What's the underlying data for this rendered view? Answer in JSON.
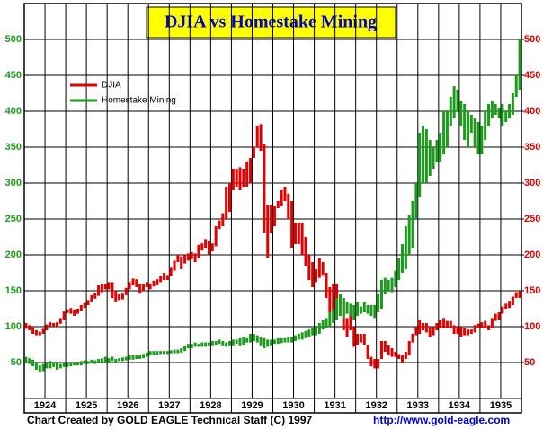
{
  "chart_data": {
    "type": "range_bar",
    "title": "DJIA  vs  Homestake Mining",
    "credit": "Chart Created by GOLD EAGLE Technical Staff (C) 1997",
    "url": "http://www.gold-eagle.com",
    "categories": [
      "1924",
      "1925",
      "1926",
      "1927",
      "1928",
      "1929",
      "1930",
      "1931",
      "1932",
      "1933",
      "1934",
      "1935"
    ],
    "ylim": [
      0,
      550
    ],
    "yticks": [
      50,
      100,
      150,
      200,
      250,
      300,
      350,
      400,
      450,
      500
    ],
    "y2lim": [
      0,
      550
    ],
    "y2ticks": [
      50,
      100,
      150,
      200,
      250,
      300,
      350,
      400,
      450,
      500
    ],
    "grid": true,
    "legend": "upper left",
    "series": [
      {
        "name": "DJIA",
        "color": "#e00000",
        "axis": "y2",
        "low": [
          97,
          95,
          90,
          88,
          88,
          90,
          95,
          100,
          100,
          100,
          104,
          110,
          119,
          118,
          115,
          118,
          122,
          126,
          130,
          135,
          139,
          143,
          148,
          152,
          152,
          140,
          135,
          137,
          138,
          144,
          152,
          158,
          155,
          146,
          150,
          155,
          152,
          156,
          158,
          162,
          165,
          165,
          170,
          178,
          190,
          180,
          188,
          192,
          194,
          190,
          196,
          206,
          210,
          200,
          205,
          212,
          236,
          240,
          250,
          260,
          290,
          295,
          290,
          295,
          295,
          300,
          335,
          350,
          345,
          230,
          195,
          230,
          240,
          265,
          268,
          275,
          250,
          210,
          215,
          215,
          200,
          185,
          165,
          155,
          162,
          168,
          172,
          140,
          120,
          120,
          140,
          130,
          95,
          85,
          95,
          72,
          75,
          78,
          75,
          55,
          45,
          42,
          42,
          55,
          65,
          60,
          58,
          58,
          55,
          50,
          55,
          60,
          78,
          88,
          90,
          95,
          92,
          85,
          88,
          95,
          98,
          98,
          98,
          98,
          90,
          90,
          85,
          88,
          88,
          90,
          92,
          98,
          98,
          98,
          95,
          98,
          108,
          110,
          118,
          125,
          126,
          130,
          140,
          140
        ],
        "high": [
          105,
          102,
          99,
          95,
          93,
          97,
          103,
          106,
          105,
          106,
          112,
          121,
          124,
          126,
          124,
          125,
          130,
          133,
          137,
          144,
          147,
          158,
          160,
          160,
          162,
          162,
          150,
          145,
          146,
          154,
          162,
          167,
          166,
          160,
          160,
          162,
          160,
          164,
          166,
          170,
          175,
          172,
          182,
          192,
          200,
          198,
          200,
          202,
          204,
          202,
          214,
          216,
          222,
          220,
          216,
          240,
          248,
          258,
          295,
          300,
          320,
          320,
          322,
          320,
          330,
          335,
          350,
          380,
          382,
          355,
          270,
          270,
          268,
          275,
          290,
          295,
          285,
          275,
          245,
          245,
          245,
          225,
          200,
          190,
          180,
          195,
          190,
          175,
          155,
          160,
          160,
          145,
          140,
          112,
          120,
          100,
          90,
          90,
          90,
          75,
          58,
          55,
          55,
          80,
          80,
          75,
          70,
          65,
          62,
          60,
          65,
          80,
          90,
          100,
          110,
          105,
          105,
          100,
          100,
          105,
          110,
          112,
          108,
          108,
          102,
          100,
          100,
          98,
          96,
          96,
          102,
          104,
          106,
          108,
          102,
          112,
          118,
          120,
          128,
          132,
          136,
          142,
          148,
          150
        ]
      },
      {
        "name": "Homestake Mining",
        "color": "#1e9a1e",
        "axis": "y",
        "low": [
          50,
          48,
          45,
          40,
          36,
          38,
          42,
          42,
          44,
          40,
          42,
          44,
          44,
          45,
          46,
          46,
          46,
          48,
          48,
          49,
          48,
          50,
          50,
          50,
          50,
          52,
          50,
          52,
          52,
          53,
          54,
          54,
          55,
          55,
          56,
          58,
          60,
          60,
          61,
          62,
          62,
          62,
          63,
          63,
          63,
          64,
          66,
          70,
          70,
          72,
          72,
          72,
          72,
          74,
          74,
          75,
          76,
          74,
          72,
          74,
          74,
          76,
          74,
          75,
          78,
          78,
          80,
          78,
          74,
          70,
          72,
          74,
          76,
          76,
          77,
          78,
          78,
          78,
          80,
          82,
          82,
          84,
          86,
          88,
          88,
          90,
          96,
          98,
          100,
          105,
          110,
          115,
          112,
          118,
          115,
          110,
          115,
          118,
          120,
          118,
          115,
          112,
          120,
          125,
          145,
          150,
          148,
          155,
          165,
          175,
          180,
          200,
          210,
          250,
          280,
          300,
          300,
          310,
          320,
          330,
          330,
          340,
          350,
          380,
          390,
          400,
          380,
          360,
          350,
          370,
          350,
          340,
          340,
          360,
          380,
          390,
          395,
          390,
          380,
          385,
          390,
          395,
          420,
          430
        ],
        "high": [
          58,
          56,
          54,
          50,
          46,
          48,
          50,
          52,
          50,
          50,
          48,
          50,
          50,
          50,
          50,
          50,
          52,
          53,
          52,
          54,
          53,
          55,
          56,
          58,
          56,
          58,
          55,
          56,
          57,
          58,
          60,
          60,
          60,
          61,
          62,
          64,
          66,
          66,
          66,
          66,
          66,
          66,
          67,
          68,
          68,
          70,
          74,
          76,
          76,
          78,
          76,
          78,
          78,
          78,
          80,
          80,
          82,
          80,
          78,
          80,
          82,
          82,
          84,
          85,
          84,
          90,
          90,
          88,
          86,
          84,
          82,
          82,
          82,
          84,
          84,
          84,
          85,
          86,
          88,
          90,
          92,
          94,
          96,
          98,
          100,
          105,
          110,
          112,
          120,
          125,
          140,
          145,
          140,
          135,
          132,
          130,
          135,
          128,
          135,
          130,
          130,
          130,
          145,
          165,
          168,
          165,
          168,
          178,
          195,
          215,
          240,
          255,
          275,
          300,
          370,
          380,
          375,
          360,
          350,
          360,
          370,
          400,
          400,
          420,
          435,
          430,
          415,
          410,
          400,
          395,
          390,
          385,
          380,
          400,
          410,
          415,
          410,
          405,
          410,
          400,
          410,
          425,
          450,
          500
        ]
      }
    ]
  }
}
